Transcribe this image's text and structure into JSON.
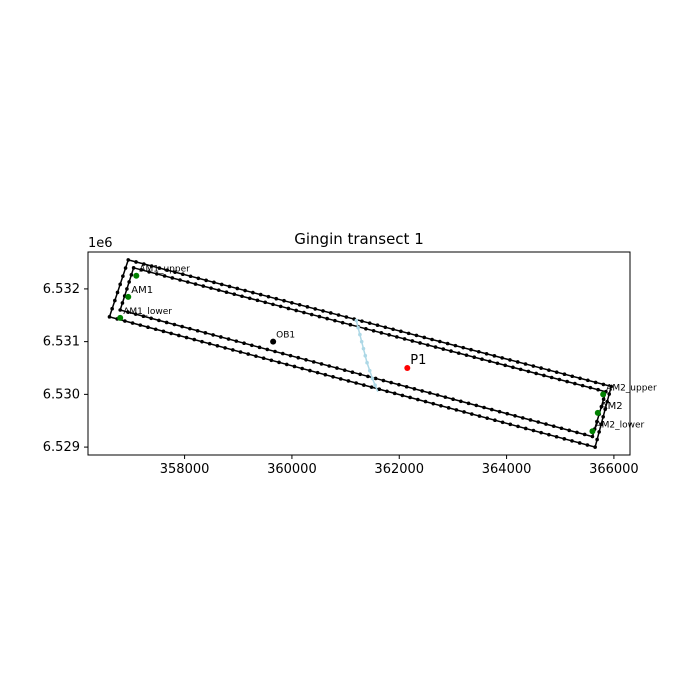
{
  "chart_data": {
    "type": "scatter",
    "title": "Gingin transect 1",
    "xlabel": "",
    "ylabel": "",
    "y_offset_label": "1e6",
    "xlim": [
      356200,
      366300
    ],
    "ylim": [
      6528850,
      6532700
    ],
    "xticks": [
      358000,
      360000,
      362000,
      364000,
      366000
    ],
    "xtick_labels": [
      "358000",
      "360000",
      "362000",
      "364000",
      "366000"
    ],
    "yticks": [
      6529000,
      6530000,
      6531000,
      6532000
    ],
    "ytick_labels": [
      "6.529",
      "6.530",
      "6.531",
      "6.532"
    ],
    "grid": false,
    "legend": "none",
    "series": [
      {
        "color": "#000000",
        "marker": "dot",
        "line": true,
        "closed": true,
        "x": [
          356950,
          356600,
          365650,
          365950
        ],
        "y": [
          6532550,
          6531470,
          6529000,
          6530150
        ]
      },
      {
        "color": "#000000",
        "marker": "dot",
        "line": true,
        "closed": true,
        "x": [
          357050,
          356800,
          365600,
          365850
        ],
        "y": [
          6532400,
          6531600,
          6529200,
          6530050
        ]
      },
      {
        "color": "#add8e6",
        "marker": "dot",
        "line": true,
        "closed": false,
        "x": [
          361200,
          361300,
          361400,
          361500,
          361600
        ],
        "y": [
          6531400,
          6531000,
          6530600,
          6530300,
          6530050
        ]
      }
    ],
    "points": [
      {
        "label": "AM1_upper",
        "x": 357100,
        "y": 6532250,
        "color": "#008000"
      },
      {
        "label": "AM1",
        "x": 356950,
        "y": 6531850,
        "color": "#008000"
      },
      {
        "label": "AM1_lower",
        "x": 356800,
        "y": 6531450,
        "color": "#008000"
      },
      {
        "label": "OB1",
        "x": 359650,
        "y": 6531000,
        "color": "#000000"
      },
      {
        "label": "P1",
        "x": 362150,
        "y": 6530500,
        "color": "#ff0000"
      },
      {
        "label": "AM2_upper",
        "x": 365800,
        "y": 6530000,
        "color": "#008000"
      },
      {
        "label": "AM2",
        "x": 365700,
        "y": 6529650,
        "color": "#008000"
      },
      {
        "label": "AM2_lower",
        "x": 365600,
        "y": 6529300,
        "color": "#008000"
      }
    ]
  }
}
